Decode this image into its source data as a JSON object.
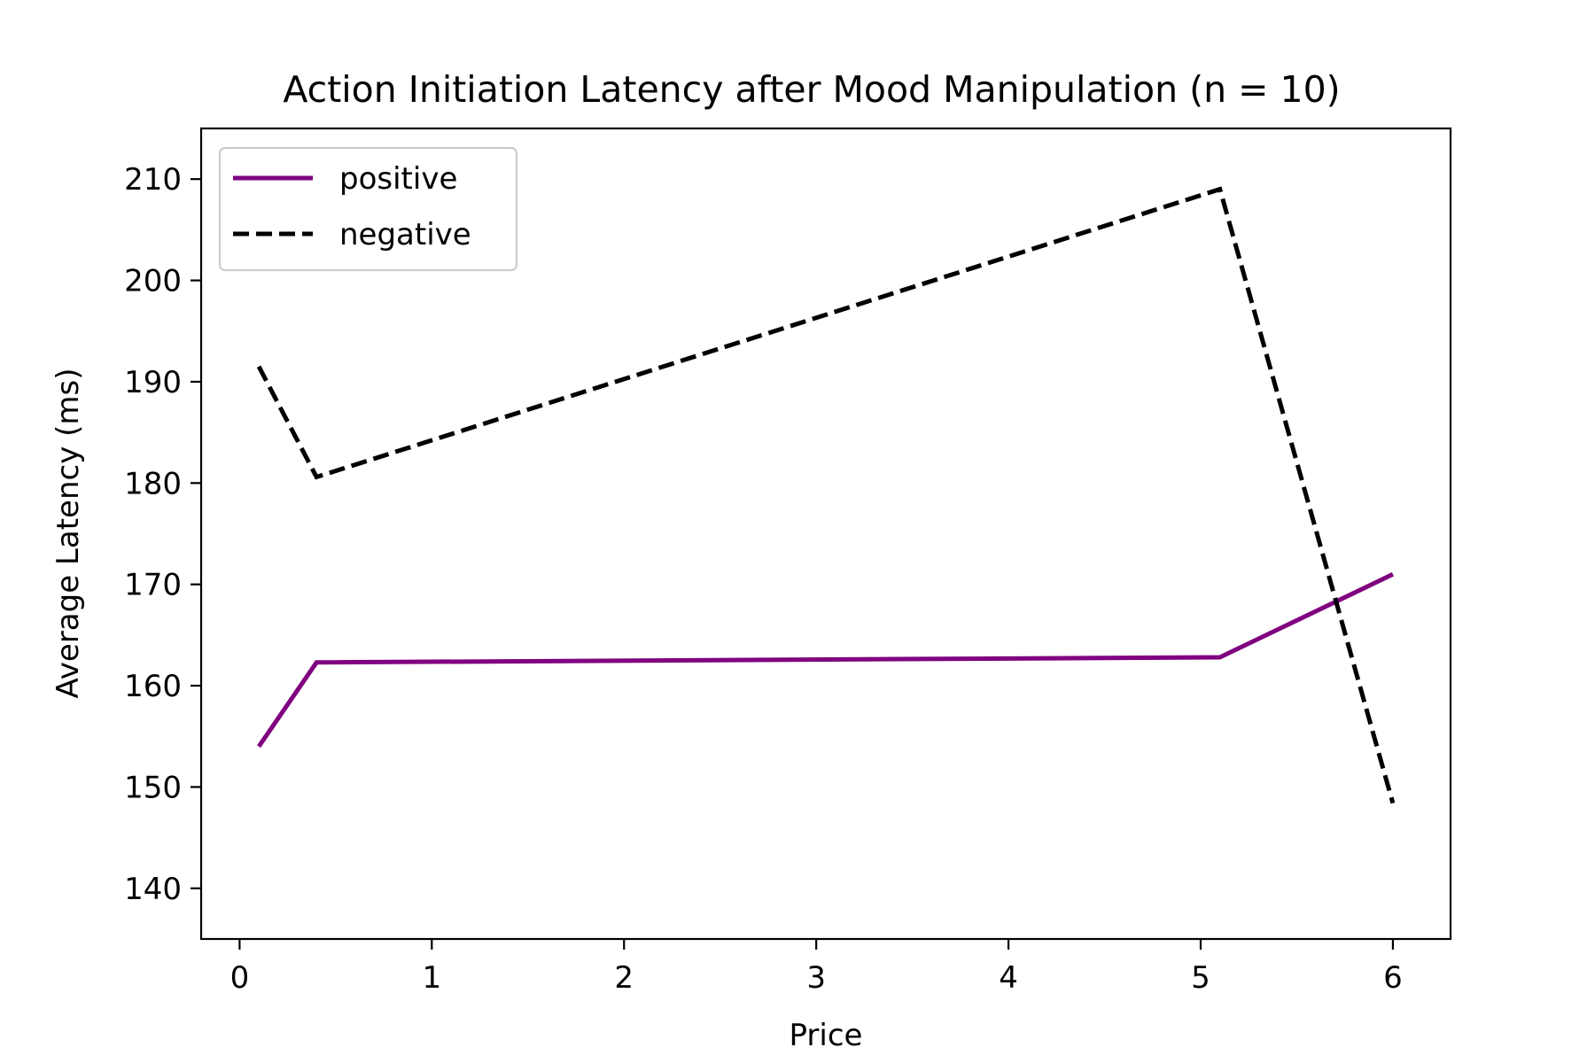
{
  "chart_data": {
    "type": "line",
    "title": "Action Initiation Latency after Mood Manipulation (n = 10)",
    "xlabel": "Price",
    "ylabel": "Average Latency (ms)",
    "xlim": [
      -0.2,
      6.3
    ],
    "ylim": [
      135,
      215
    ],
    "x_ticks": [
      0,
      1,
      2,
      3,
      4,
      5,
      6
    ],
    "x_tick_labels": [
      "0",
      "1",
      "2",
      "3",
      "4",
      "5",
      "6"
    ],
    "y_ticks": [
      140,
      150,
      160,
      170,
      180,
      190,
      200,
      210
    ],
    "y_tick_labels": [
      "140",
      "150",
      "160",
      "170",
      "180",
      "190",
      "200",
      "210"
    ],
    "grid": false,
    "legend_position": "top-left",
    "series": [
      {
        "name": "positive",
        "color": "#800080",
        "line_style": "solid",
        "x": [
          0.1,
          0.4,
          5.1,
          6.0
        ],
        "y": [
          154.0,
          162.3,
          162.8,
          171.0
        ]
      },
      {
        "name": "negative",
        "color": "#000000",
        "line_style": "dashed",
        "x": [
          0.1,
          0.4,
          5.1,
          6.0
        ],
        "y": [
          191.5,
          180.6,
          209.0,
          148.4
        ]
      }
    ]
  }
}
